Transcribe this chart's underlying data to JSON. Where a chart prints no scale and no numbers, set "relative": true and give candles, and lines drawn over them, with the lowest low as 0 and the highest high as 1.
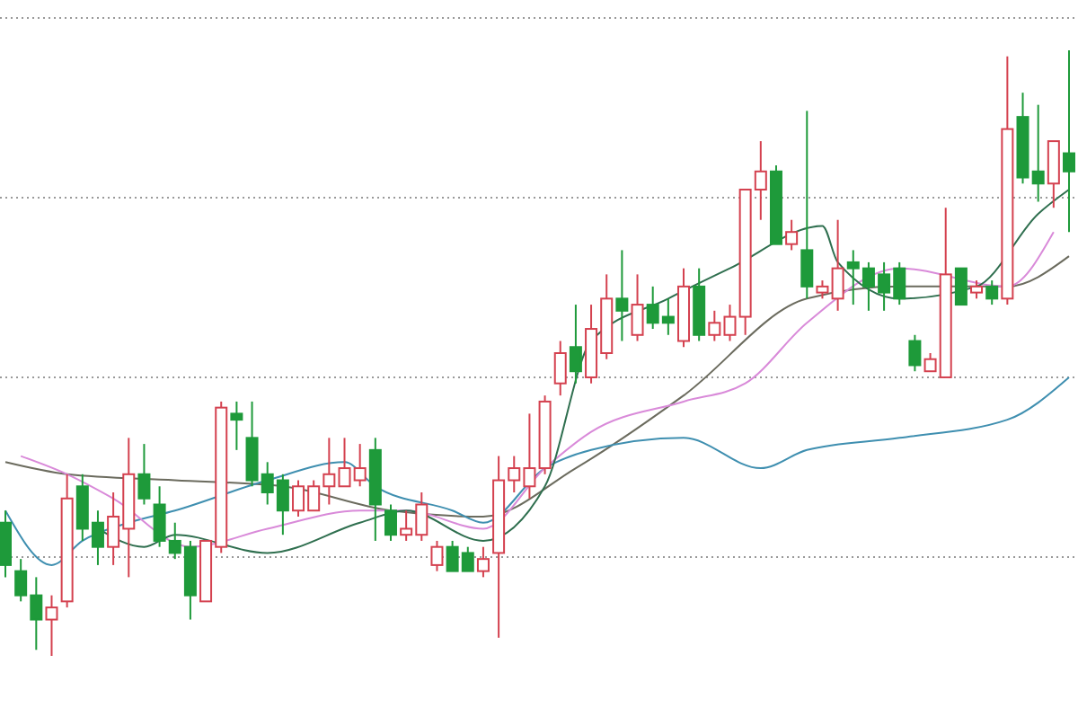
{
  "chart_data": {
    "type": "candlestick",
    "relative": true,
    "grid": true,
    "categories": [
      null,
      null,
      null,
      null,
      null,
      null,
      null,
      null,
      null,
      null,
      null,
      null,
      null,
      null,
      null,
      null,
      null,
      null,
      null,
      null,
      null,
      null,
      null,
      null,
      null,
      null,
      null,
      null,
      null,
      null,
      null,
      null,
      null,
      null,
      null,
      null,
      null,
      null,
      null,
      null,
      null,
      null,
      null,
      null,
      null,
      null,
      null,
      null,
      null,
      null,
      null,
      null,
      null,
      null,
      null,
      null,
      null,
      null,
      null,
      null,
      null,
      null,
      null,
      null,
      null,
      null,
      null,
      null,
      null,
      null
    ],
    "ohlc": [
      [
        0.22,
        0.24,
        0.13,
        0.15
      ],
      [
        0.14,
        0.16,
        0.09,
        0.1
      ],
      [
        0.1,
        0.13,
        0.01,
        0.06
      ],
      [
        0.06,
        0.1,
        0,
        0.08
      ],
      [
        0.09,
        0.3,
        0.08,
        0.26
      ],
      [
        0.28,
        0.3,
        0.19,
        0.21
      ],
      [
        0.22,
        0.24,
        0.15,
        0.18
      ],
      [
        0.18,
        0.27,
        0.15,
        0.23
      ],
      [
        0.21,
        0.36,
        0.13,
        0.3
      ],
      [
        0.3,
        0.35,
        0.25,
        0.26
      ],
      [
        0.25,
        0.28,
        0.18,
        0.19
      ],
      [
        0.19,
        0.22,
        0.16,
        0.17
      ],
      [
        0.18,
        0.19,
        0.06,
        0.1
      ],
      [
        0.09,
        0.19,
        0.09,
        0.19
      ],
      [
        0.18,
        0.42,
        0.17,
        0.41
      ],
      [
        0.4,
        0.42,
        0.34,
        0.39
      ],
      [
        0.36,
        0.42,
        0.28,
        0.29
      ],
      [
        0.3,
        0.32,
        0.25,
        0.27
      ],
      [
        0.29,
        0.3,
        0.2,
        0.24
      ],
      [
        0.24,
        0.29,
        0.23,
        0.28
      ],
      [
        0.24,
        0.29,
        0.24,
        0.28
      ],
      [
        0.28,
        0.36,
        0.25,
        0.3
      ],
      [
        0.28,
        0.36,
        0.28,
        0.31
      ],
      [
        0.29,
        0.35,
        0.28,
        0.31
      ],
      [
        0.34,
        0.36,
        0.19,
        0.25
      ],
      [
        0.24,
        0.25,
        0.19,
        0.2
      ],
      [
        0.2,
        0.24,
        0.19,
        0.21
      ],
      [
        0.2,
        0.27,
        0.19,
        0.25
      ],
      [
        0.15,
        0.19,
        0.14,
        0.18
      ],
      [
        0.18,
        0.19,
        0.14,
        0.14
      ],
      [
        0.17,
        0.18,
        0.14,
        0.14
      ],
      [
        0.14,
        0.18,
        0.13,
        0.16
      ],
      [
        0.17,
        0.33,
        0.03,
        0.29
      ],
      [
        0.29,
        0.33,
        0.27,
        0.31
      ],
      [
        0.28,
        0.4,
        0.26,
        0.31
      ],
      [
        0.31,
        0.43,
        0.3,
        0.42
      ],
      [
        0.45,
        0.52,
        0.43,
        0.5
      ],
      [
        0.51,
        0.58,
        0.45,
        0.47
      ],
      [
        0.46,
        0.58,
        0.45,
        0.54
      ],
      [
        0.5,
        0.63,
        0.49,
        0.59
      ],
      [
        0.59,
        0.67,
        0.52,
        0.57
      ],
      [
        0.53,
        0.63,
        0.52,
        0.58
      ],
      [
        0.58,
        0.61,
        0.54,
        0.55
      ],
      [
        0.56,
        0.59,
        0.53,
        0.55
      ],
      [
        0.52,
        0.64,
        0.51,
        0.61
      ],
      [
        0.61,
        0.64,
        0.52,
        0.53
      ],
      [
        0.53,
        0.57,
        0.52,
        0.55
      ],
      [
        0.53,
        0.58,
        0.52,
        0.56
      ],
      [
        0.56,
        0.77,
        0.53,
        0.77
      ],
      [
        0.77,
        0.85,
        0.72,
        0.8
      ],
      [
        0.8,
        0.81,
        0.68,
        0.68
      ],
      [
        0.68,
        0.72,
        0.67,
        0.7
      ],
      [
        0.67,
        0.9,
        0.59,
        0.61
      ],
      [
        0.6,
        0.62,
        0.59,
        0.61
      ],
      [
        0.59,
        0.72,
        0.57,
        0.64
      ],
      [
        0.65,
        0.67,
        0.58,
        0.64
      ],
      [
        0.64,
        0.65,
        0.57,
        0.61
      ],
      [
        0.63,
        0.65,
        0.57,
        0.6
      ],
      [
        0.64,
        0.65,
        0.58,
        0.59
      ],
      [
        0.52,
        0.53,
        0.47,
        0.48
      ],
      [
        0.47,
        0.5,
        0.47,
        0.49
      ],
      [
        0.46,
        0.74,
        0.46,
        0.63
      ],
      [
        0.64,
        0.64,
        0.58,
        0.58
      ],
      [
        0.6,
        0.62,
        0.59,
        0.61
      ],
      [
        0.61,
        0.62,
        0.58,
        0.59
      ],
      [
        0.59,
        0.99,
        0.58,
        0.87
      ],
      [
        0.89,
        0.93,
        0.78,
        0.79
      ],
      [
        0.8,
        0.91,
        0.75,
        0.78
      ],
      [
        0.78,
        0.85,
        0.74,
        0.85
      ],
      [
        0.83,
        1.0,
        0.7,
        0.8
      ]
    ],
    "series": [
      {
        "type": "line",
        "color": "#6b6b5e",
        "values": [
          0.32,
          null,
          null,
          null,
          0.3,
          null,
          null,
          null,
          null,
          null,
          null,
          0.29,
          null,
          null,
          null,
          null,
          null,
          null,
          0.28,
          null,
          null,
          null,
          null,
          null,
          null,
          0.24,
          null,
          null,
          null,
          null,
          null,
          0.23,
          null,
          null,
          null,
          null,
          null,
          0.31,
          null,
          null,
          null,
          null,
          null,
          null,
          0.43,
          null,
          null,
          null,
          null,
          null,
          null,
          null,
          0.59,
          null,
          null,
          null,
          null,
          null,
          0.61,
          null,
          null,
          null,
          null,
          null,
          null,
          0.61,
          null,
          null,
          null,
          0.66
        ]
      },
      {
        "type": "line",
        "color": "#3f8fb0",
        "values": [
          0.24,
          null,
          null,
          0.15,
          null,
          0.19,
          null,
          null,
          0.22,
          null,
          null,
          0.24,
          null,
          null,
          null,
          null,
          null,
          0.29,
          null,
          null,
          null,
          null,
          0.32,
          null,
          0.28,
          null,
          null,
          null,
          null,
          0.24,
          null,
          0.22,
          null,
          null,
          null,
          0.31,
          null,
          null,
          0.34,
          null,
          null,
          null,
          null,
          null,
          0.36,
          null,
          null,
          null,
          null,
          0.31,
          null,
          null,
          0.34,
          null,
          null,
          null,
          null,
          null,
          0.36,
          null,
          null,
          null,
          null,
          null,
          null,
          0.39,
          null,
          null,
          null,
          0.46
        ]
      },
      {
        "type": "line",
        "color": "#d98ad9",
        "values": [
          null,
          0.33,
          null,
          null,
          0.3,
          null,
          null,
          0.26,
          null,
          null,
          null,
          null,
          0.18,
          null,
          null,
          null,
          null,
          0.21,
          null,
          null,
          null,
          null,
          null,
          0.24,
          null,
          null,
          0.24,
          null,
          null,
          null,
          null,
          0.21,
          null,
          null,
          null,
          0.31,
          null,
          null,
          0.37,
          null,
          null,
          null,
          null,
          null,
          0.42,
          null,
          null,
          null,
          0.45,
          null,
          null,
          null,
          0.55,
          null,
          null,
          null,
          null,
          null,
          0.64,
          null,
          null,
          null,
          null,
          null,
          null,
          0.61,
          null,
          null,
          0.7,
          null
        ]
      },
      {
        "type": "line",
        "color": "#2f6f4f",
        "values": [
          null,
          null,
          null,
          null,
          null,
          null,
          0.21,
          null,
          null,
          0.18,
          null,
          0.2,
          null,
          null,
          null,
          null,
          null,
          0.17,
          null,
          null,
          null,
          null,
          null,
          0.22,
          null,
          null,
          0.24,
          null,
          null,
          null,
          null,
          0.19,
          null,
          null,
          null,
          0.28,
          null,
          null,
          0.52,
          null,
          null,
          null,
          null,
          0.59,
          null,
          null,
          null,
          0.64,
          null,
          null,
          null,
          null,
          null,
          0.71,
          0.65,
          null,
          null,
          null,
          0.59,
          null,
          null,
          null,
          null,
          0.61,
          null,
          null,
          null,
          0.73,
          null,
          0.77
        ]
      }
    ]
  }
}
